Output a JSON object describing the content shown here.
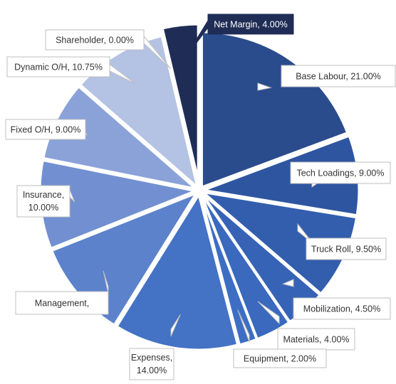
{
  "chart_data": {
    "type": "pie",
    "exploded": true,
    "slices": [
      {
        "label": "Base Labour",
        "value": 21.0,
        "display": "Base Labour, 21.00%",
        "color": "#2b4c8c"
      },
      {
        "label": "Tech Loadings",
        "value": 9.0,
        "display": "Tech Loadings, 9.00%",
        "color": "#2e55a0"
      },
      {
        "label": "Truck Roll",
        "value": 9.5,
        "display": "Truck Roll, 9.50%",
        "color": "#335eae"
      },
      {
        "label": "Mobilization",
        "value": 4.5,
        "display": "Mobilization, 4.50%",
        "color": "#3763b6"
      },
      {
        "label": "Materials",
        "value": 4.0,
        "display": "Materials, 4.00%",
        "color": "#3a69bd"
      },
      {
        "label": "Equipment",
        "value": 2.0,
        "display": "Equipment, 2.00%",
        "color": "#3d6ec3"
      },
      {
        "label": "Expenses",
        "value": 14.0,
        "display": "Expenses, 14.00%",
        "color": "#4472c4"
      },
      {
        "label": "Management",
        "value": 11.0,
        "display": "Management,",
        "color": "#5b82cb"
      },
      {
        "label": "Insurance",
        "value": 10.0,
        "display": "Insurance, 10.00%",
        "color": "#7290d1"
      },
      {
        "label": "Fixed O/H",
        "value": 9.0,
        "display": "Fixed O/H, 9.00%",
        "color": "#8aa2d8"
      },
      {
        "label": "Dynamic O/H",
        "value": 10.75,
        "display": "Dynamic O/H, 10.75%",
        "color": "#b4c2e3"
      },
      {
        "label": "Shareholder",
        "value": 0.0,
        "display": "Shareholder, 0.00%",
        "color": "#c9d3ec"
      },
      {
        "label": "Net Margin",
        "value": 4.0,
        "display": "Net Margin, 4.00%",
        "color": "#1f2d56"
      }
    ],
    "legend": "none",
    "title": ""
  }
}
